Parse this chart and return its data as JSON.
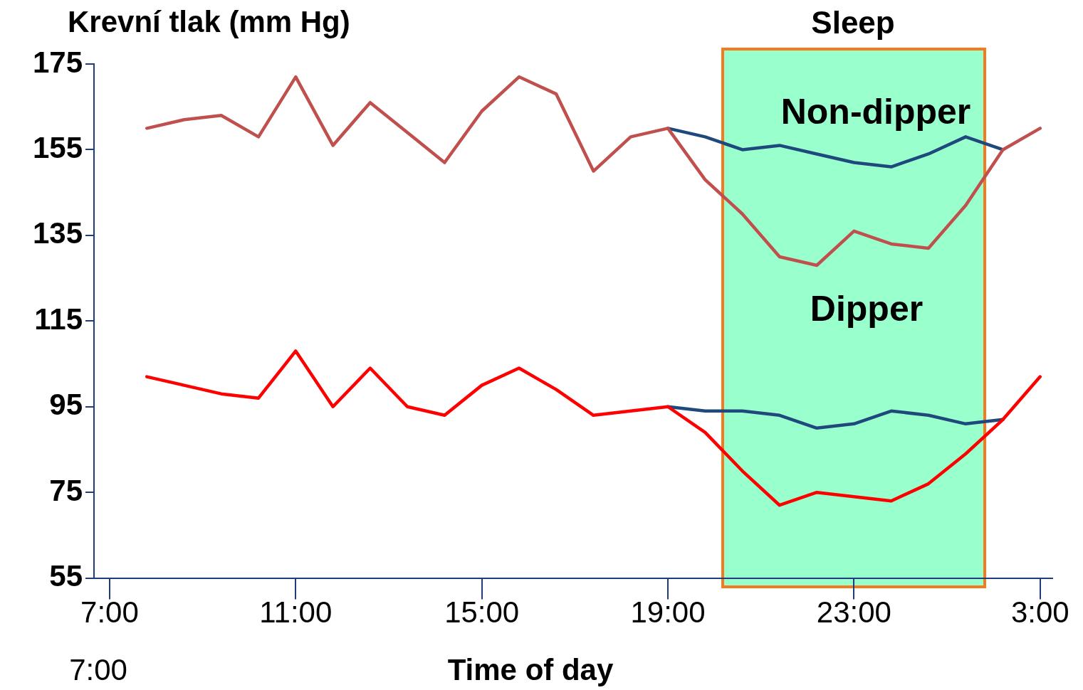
{
  "chart_data": {
    "type": "line",
    "xlabel": "Time of day",
    "ylabel": "Krevní tlak (mm Hg)",
    "ylim": [
      55,
      175
    ],
    "yticks": [
      55,
      75,
      95,
      115,
      135,
      155,
      175
    ],
    "categories": [
      "7:00",
      null,
      null,
      null,
      null,
      "11:00",
      null,
      null,
      null,
      null,
      "15:00",
      null,
      null,
      null,
      null,
      "19:00",
      null,
      null,
      null,
      null,
      "23:00",
      null,
      null,
      null,
      null,
      "3:00"
    ],
    "series": [
      {
        "color": "#c0504d",
        "values": [
          null,
          160,
          162,
          163,
          158,
          172,
          156,
          166,
          159,
          152,
          164,
          172,
          168,
          150,
          158,
          160,
          148,
          140,
          130,
          128,
          136,
          133,
          132,
          142,
          155,
          160
        ]
      },
      {
        "color": "#1f497d",
        "values": [
          null,
          null,
          null,
          null,
          null,
          null,
          null,
          null,
          null,
          null,
          null,
          null,
          null,
          null,
          null,
          160,
          158,
          155,
          156,
          154,
          152,
          151,
          154,
          158,
          155,
          null
        ]
      },
      {
        "color": "#ff0000",
        "values": [
          null,
          102,
          100,
          98,
          97,
          108,
          95,
          104,
          95,
          93,
          100,
          104,
          99,
          93,
          94,
          95,
          89,
          80,
          72,
          75,
          74,
          73,
          77,
          84,
          92,
          102
        ]
      },
      {
        "color": "#1f497d",
        "values": [
          null,
          null,
          null,
          null,
          null,
          null,
          null,
          null,
          null,
          null,
          null,
          null,
          null,
          null,
          null,
          95,
          94,
          94,
          93,
          90,
          91,
          94,
          93,
          91,
          92,
          null
        ]
      }
    ],
    "annotations": [
      "Sleep",
      "Non-dipper",
      "Dipper",
      "7:00"
    ],
    "grid": false,
    "legend": false,
    "marker": "none",
    "line_style": "solid"
  }
}
